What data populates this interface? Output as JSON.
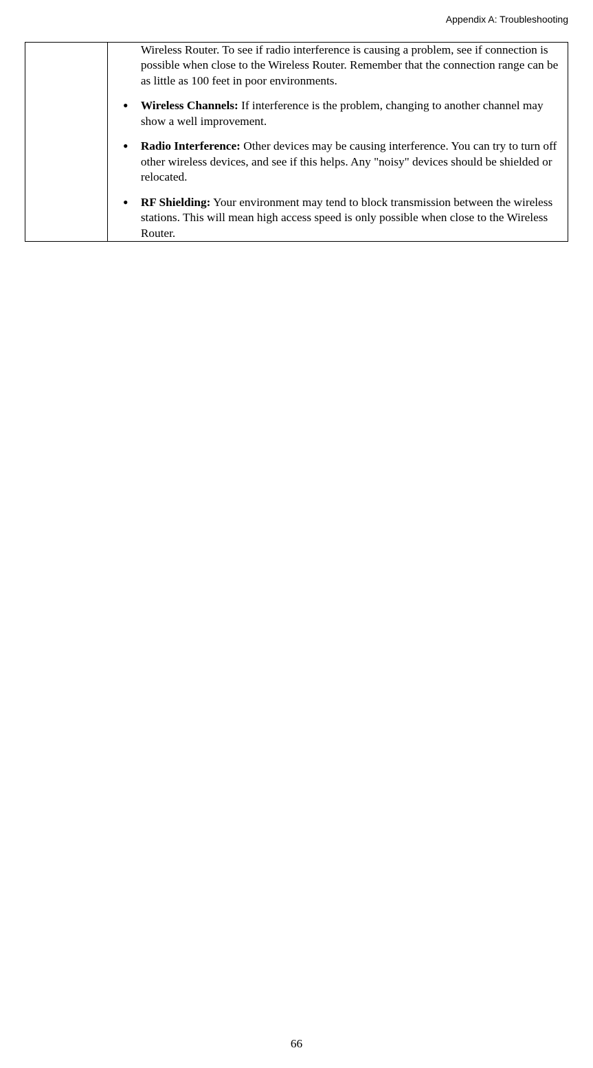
{
  "header": {
    "title": "Appendix A: Troubleshooting"
  },
  "content": {
    "intro": "Wireless Router. To see if radio interference is causing a problem, see if connection is possible when close to the Wireless Router. Remember that the connection range can be as little as 100 feet in poor environments.",
    "bullets": [
      {
        "label": "Wireless Channels:",
        "text": " If interference is the problem, changing to another channel may show a well improvement."
      },
      {
        "label": "Radio Interference:",
        "text": " Other devices may be causing interference. You can try to turn off other wireless devices, and see if this helps. Any \"noisy\" devices should be shielded or relocated."
      },
      {
        "label": "RF Shielding:",
        "text": " Your environment may tend to block transmission between the wireless stations. This will mean high access speed is only possible when close to the Wireless Router."
      }
    ]
  },
  "footer": {
    "page_number": "66"
  }
}
